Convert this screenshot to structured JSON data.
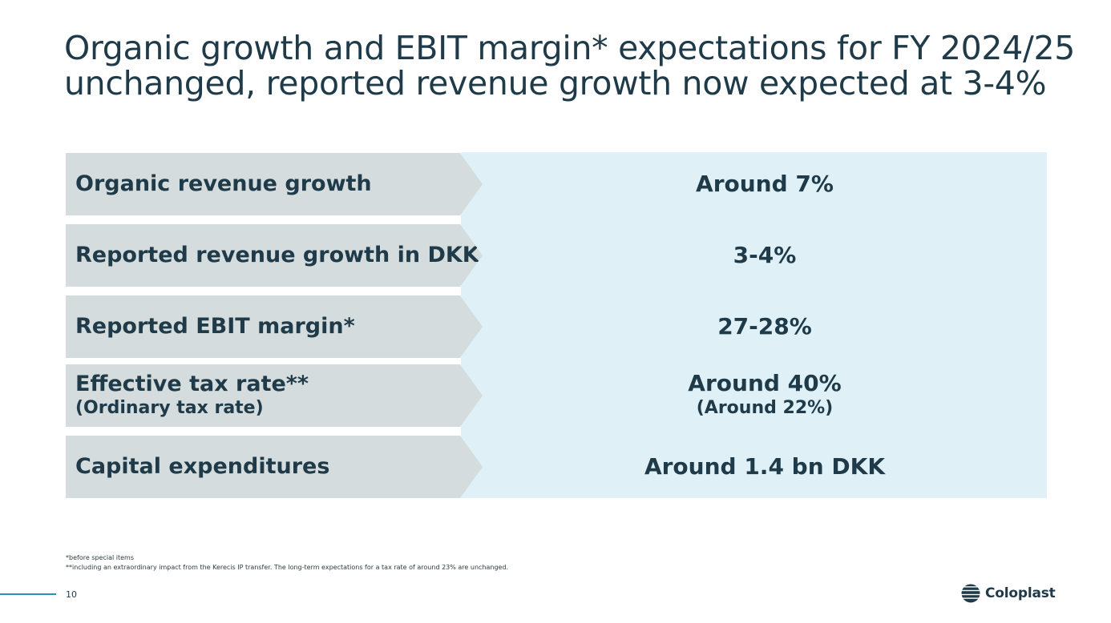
{
  "title": {
    "line1": "Organic growth and EBIT margin* expectations for FY 2024/25",
    "line2": "unchanged, reported revenue growth now expected at 3-4%"
  },
  "rows": [
    {
      "label": "Organic revenue growth",
      "value": "Around 7%"
    },
    {
      "label": "Reported revenue growth in DKK",
      "value": "3-4%"
    },
    {
      "label": "Reported EBIT margin*",
      "value": "27-28%"
    },
    {
      "label": "Effective tax rate**",
      "label_sub": "(Ordinary tax rate)",
      "value": "Around 40%",
      "value_sub": "(Around 22%)"
    },
    {
      "label": "Capital expenditures",
      "value": "Around 1.4 bn DKK"
    }
  ],
  "footnotes": {
    "note1": "*before special items",
    "note2": "**including an extraordinary impact from the Kerecis IP transfer. The long-term expectations for a tax rate of around 23% are unchanged."
  },
  "page_number": "10",
  "brand": {
    "name": "Coloplast",
    "logo_icon": "coloplast-logo-icon"
  },
  "colors": {
    "text": "#1f3a48",
    "label_bg": "#d5dcdd",
    "value_bg": "#dff1f7",
    "accent": "#2a93b4"
  }
}
